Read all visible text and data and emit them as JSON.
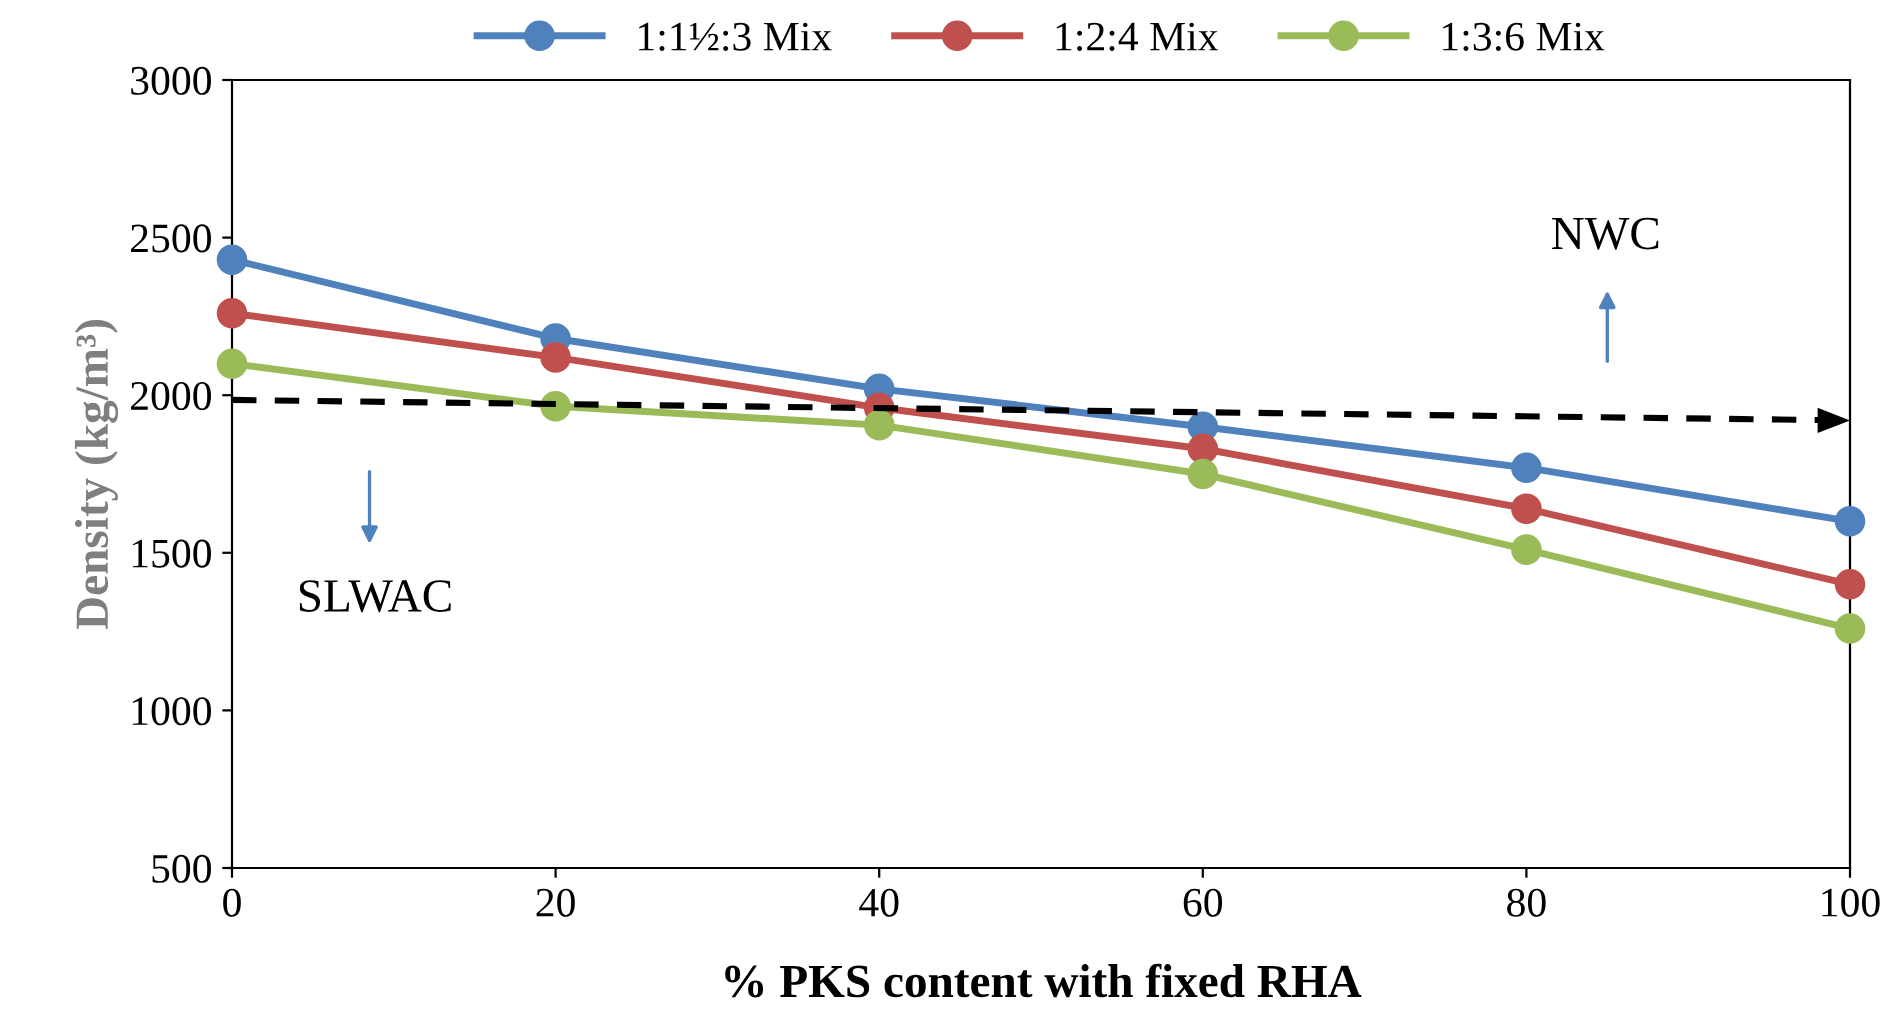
{
  "chart_data": {
    "type": "line",
    "xlabel": "% PKS content with fixed RHA",
    "ylabel": "Density (kg/m³)",
    "x": [
      0,
      20,
      40,
      60,
      80,
      100
    ],
    "series": [
      {
        "name": "1:1½:3 Mix",
        "color": "#4f81bd",
        "values": [
          2430,
          2180,
          2020,
          1900,
          1770,
          1600
        ]
      },
      {
        "name": "1:2:4 Mix",
        "color": "#c0504d",
        "values": [
          2260,
          2120,
          1960,
          1830,
          1640,
          1400
        ]
      },
      {
        "name": "1:3:6 Mix",
        "color": "#9bbb59",
        "values": [
          2100,
          1965,
          1905,
          1750,
          1510,
          1260
        ]
      },
      {
        "color": "#000000",
        "x": [
          0,
          100
        ],
        "values": [
          1985,
          1920
        ],
        "line_style": "dashed",
        "marker": "none"
      }
    ],
    "annotations": [
      "NWC",
      "SLWAC"
    ],
    "xlim": [
      0,
      100
    ],
    "xticks": [
      0,
      20,
      40,
      60,
      80,
      100
    ],
    "ylim": [
      500,
      3000
    ],
    "yticks": [
      500,
      1000,
      1500,
      2000,
      2500,
      3000
    ],
    "marker": "circle",
    "line_style": "solid",
    "grid": false,
    "legend": "top"
  }
}
